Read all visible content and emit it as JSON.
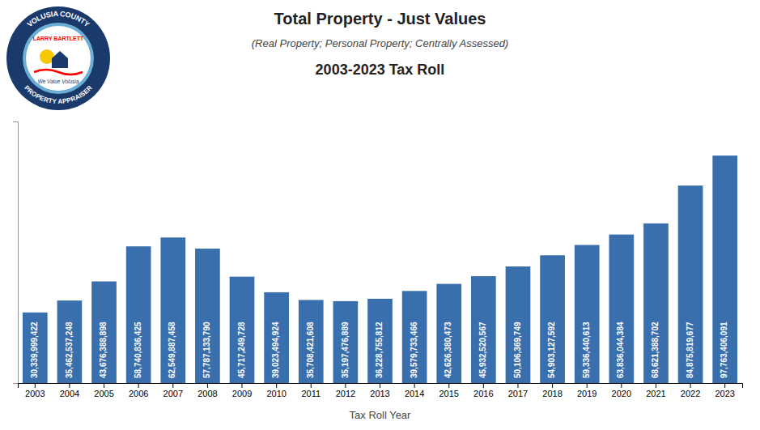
{
  "chart_data": {
    "type": "bar",
    "title": "Total Property - Just Values",
    "subtitle": "(Real Property; Personal Property; Centrally Assessed)",
    "annotations": [
      "2003-2023 Tax Roll",
      "VOLUSIA COUNTY",
      "LARRY BARTLETT",
      "We Value Volusia",
      "PROPERTY APPRAISER"
    ],
    "x_label": "Tax Roll Year",
    "categories": [
      "2003",
      "2004",
      "2005",
      "2006",
      "2007",
      "2008",
      "2009",
      "2010",
      "2011",
      "2012",
      "2013",
      "2014",
      "2015",
      "2016",
      "2017",
      "2018",
      "2019",
      "2020",
      "2021",
      "2022",
      "2023"
    ],
    "values": [
      30339999422,
      35462537248,
      43676388898,
      58740836425,
      62549887458,
      57787133790,
      45717249728,
      39023494924,
      35708421608,
      35197476889,
      36228755812,
      39579733466,
      42626380473,
      45932520567,
      50106369749,
      54903127592,
      59336440613,
      63836044384,
      68621388702,
      84875819677,
      97763406091
    ],
    "value_labels": [
      "30,339,999,422",
      "35,462,537,248",
      "43,676,388,898",
      "58,740,836,425",
      "62,549,887,458",
      "57,787,133,790",
      "45,717,249,728",
      "39,023,494,924",
      "35,708,421,608",
      "35,197,476,889",
      "36,228,755,812",
      "39,579,733,466",
      "42,626,380,473",
      "45,932,520,567",
      "50,106,369,749",
      "54,903,127,592",
      "59,336,440,613",
      "63,836,044,384",
      "68,621,388,702",
      "84,875,819,677",
      "97,763,406,091"
    ],
    "data_labels": true,
    "color": "#3a6fad",
    "ylim": [
      0,
      112427917004.65
    ],
    "grid": false,
    "tick_labels": "x"
  }
}
